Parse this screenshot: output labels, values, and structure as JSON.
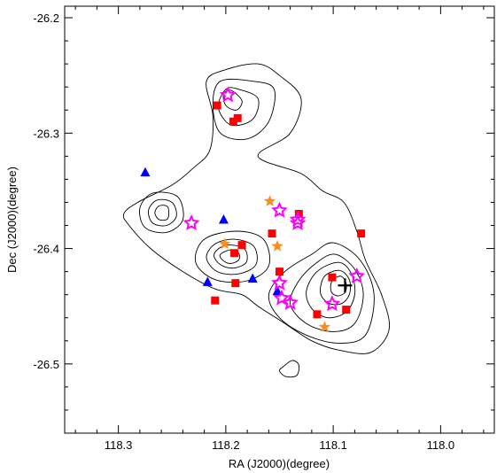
{
  "chart_data": {
    "type": "scatter",
    "xlabel": "RA (J2000)(degree)",
    "ylabel": "Dec (J2000)(degree)",
    "xlim": [
      118.35,
      117.95
    ],
    "ylim": [
      -26.56,
      -26.19
    ],
    "x_reversed": true,
    "xticks": [
      118.3,
      118.2,
      118.1,
      118.0
    ],
    "xtick_labels": [
      "118.3",
      "118.2",
      "118.1",
      "118.0"
    ],
    "yticks": [
      -26.2,
      -26.3,
      -26.4,
      -26.5
    ],
    "ytick_labels": [
      "-26.2",
      "-26.3",
      "-26.4",
      "-26.5"
    ],
    "grid": false,
    "series": [
      {
        "marker": "square",
        "color": "#ff0000",
        "points": [
          [
            118.208,
            -26.276
          ],
          [
            118.189,
            -26.287
          ],
          [
            118.193,
            -26.29
          ],
          [
            118.132,
            -26.37
          ],
          [
            118.157,
            -26.387
          ],
          [
            118.185,
            -26.397
          ],
          [
            118.192,
            -26.404
          ],
          [
            118.191,
            -26.43
          ],
          [
            118.15,
            -26.42
          ],
          [
            118.074,
            -26.387
          ],
          [
            118.101,
            -26.425
          ],
          [
            118.21,
            -26.445
          ],
          [
            118.115,
            -26.457
          ],
          [
            118.088,
            -26.453
          ]
        ]
      },
      {
        "marker": "triangle",
        "color": "#0000ff",
        "points": [
          [
            118.275,
            -26.334
          ],
          [
            118.202,
            -26.375
          ],
          [
            118.217,
            -26.429
          ],
          [
            118.175,
            -26.426
          ],
          [
            118.152,
            -26.437
          ]
        ]
      },
      {
        "marker": "star",
        "color": "#ff8c1a",
        "points": [
          [
            118.159,
            -26.359
          ],
          [
            118.201,
            -26.396
          ],
          [
            118.152,
            -26.398
          ],
          [
            118.108,
            -26.468
          ]
        ]
      },
      {
        "marker": "open-star",
        "color": "#ff00ff",
        "points": [
          [
            118.198,
            -26.267
          ],
          [
            118.15,
            -26.367
          ],
          [
            118.133,
            -26.375
          ],
          [
            118.133,
            -26.378
          ],
          [
            118.232,
            -26.378
          ],
          [
            118.15,
            -26.43
          ],
          [
            118.148,
            -26.443
          ],
          [
            118.14,
            -26.447
          ],
          [
            118.101,
            -26.448
          ],
          [
            118.078,
            -26.424
          ]
        ]
      },
      {
        "marker": "plus",
        "color": "#000000",
        "points": [
          [
            118.089,
            -26.432
          ]
        ]
      }
    ],
    "contours": [
      {
        "name": "outer",
        "points": [
          [
            118.15,
            -26.25
          ],
          [
            118.13,
            -26.27
          ],
          [
            118.14,
            -26.3
          ],
          [
            118.17,
            -26.32
          ],
          [
            118.13,
            -26.335
          ],
          [
            118.11,
            -26.35
          ],
          [
            118.09,
            -26.36
          ],
          [
            118.078,
            -26.385
          ],
          [
            118.07,
            -26.41
          ],
          [
            118.055,
            -26.44
          ],
          [
            118.048,
            -26.47
          ],
          [
            118.065,
            -26.49
          ],
          [
            118.095,
            -26.488
          ],
          [
            118.12,
            -26.48
          ],
          [
            118.145,
            -26.465
          ],
          [
            118.17,
            -26.45
          ],
          [
            118.185,
            -26.44
          ],
          [
            118.21,
            -26.435
          ],
          [
            118.24,
            -26.42
          ],
          [
            118.27,
            -26.4
          ],
          [
            118.29,
            -26.38
          ],
          [
            118.295,
            -26.37
          ],
          [
            118.282,
            -26.36
          ],
          [
            118.25,
            -26.345
          ],
          [
            118.23,
            -26.33
          ],
          [
            118.215,
            -26.315
          ],
          [
            118.212,
            -26.285
          ],
          [
            118.218,
            -26.255
          ],
          [
            118.2,
            -26.245
          ],
          [
            118.17,
            -26.24
          ]
        ]
      },
      {
        "name": "north-2",
        "points": [
          [
            118.175,
            -26.255
          ],
          [
            118.155,
            -26.262
          ],
          [
            118.16,
            -26.29
          ],
          [
            118.18,
            -26.305
          ],
          [
            118.205,
            -26.3
          ],
          [
            118.212,
            -26.275
          ],
          [
            118.205,
            -26.255
          ]
        ]
      },
      {
        "name": "north-3",
        "points": [
          [
            118.188,
            -26.262
          ],
          [
            118.17,
            -26.27
          ],
          [
            118.175,
            -26.288
          ],
          [
            118.195,
            -26.293
          ],
          [
            118.207,
            -26.278
          ],
          [
            118.2,
            -26.262
          ]
        ]
      },
      {
        "name": "north-4",
        "points": [
          [
            118.195,
            -26.263
          ],
          [
            118.185,
            -26.272
          ],
          [
            118.19,
            -26.28
          ],
          [
            118.2,
            -26.276
          ],
          [
            118.202,
            -26.266
          ]
        ]
      },
      {
        "name": "west-2",
        "points": [
          [
            118.245,
            -26.355
          ],
          [
            118.268,
            -26.352
          ],
          [
            118.28,
            -26.365
          ],
          [
            118.275,
            -26.382
          ],
          [
            118.255,
            -26.386
          ],
          [
            118.24,
            -26.375
          ]
        ]
      },
      {
        "name": "west-3",
        "points": [
          [
            118.25,
            -26.36
          ],
          [
            118.264,
            -26.358
          ],
          [
            118.272,
            -26.367
          ],
          [
            118.268,
            -26.378
          ],
          [
            118.255,
            -26.38
          ],
          [
            118.246,
            -26.372
          ]
        ]
      },
      {
        "name": "west-4",
        "points": [
          [
            118.254,
            -26.364
          ],
          [
            118.262,
            -26.363
          ],
          [
            118.266,
            -26.369
          ],
          [
            118.262,
            -26.375
          ],
          [
            118.254,
            -26.374
          ]
        ]
      },
      {
        "name": "center-2",
        "points": [
          [
            118.19,
            -26.385
          ],
          [
            118.165,
            -26.392
          ],
          [
            118.16,
            -26.415
          ],
          [
            118.18,
            -26.428
          ],
          [
            118.21,
            -26.427
          ],
          [
            118.228,
            -26.412
          ],
          [
            118.22,
            -26.392
          ]
        ]
      },
      {
        "name": "center-3",
        "points": [
          [
            118.192,
            -26.392
          ],
          [
            118.174,
            -26.398
          ],
          [
            118.172,
            -26.414
          ],
          [
            118.188,
            -26.422
          ],
          [
            118.208,
            -26.42
          ],
          [
            118.218,
            -26.408
          ],
          [
            118.21,
            -26.396
          ]
        ]
      },
      {
        "name": "center-4",
        "points": [
          [
            118.194,
            -26.397
          ],
          [
            118.182,
            -26.401
          ],
          [
            118.181,
            -26.412
          ],
          [
            118.193,
            -26.417
          ],
          [
            118.205,
            -26.414
          ],
          [
            118.211,
            -26.406
          ],
          [
            118.205,
            -26.399
          ]
        ]
      },
      {
        "name": "center-5",
        "points": [
          [
            118.195,
            -26.401
          ],
          [
            118.188,
            -26.404
          ],
          [
            118.188,
            -26.41
          ],
          [
            118.196,
            -26.413
          ],
          [
            118.203,
            -26.41
          ],
          [
            118.205,
            -26.405
          ]
        ]
      },
      {
        "name": "se-2",
        "points": [
          [
            118.1,
            -26.395
          ],
          [
            118.075,
            -26.41
          ],
          [
            118.062,
            -26.44
          ],
          [
            118.07,
            -26.475
          ],
          [
            118.095,
            -26.482
          ],
          [
            118.125,
            -26.475
          ],
          [
            118.15,
            -26.46
          ],
          [
            118.16,
            -26.44
          ],
          [
            118.145,
            -26.42
          ],
          [
            118.12,
            -26.405
          ]
        ]
      },
      {
        "name": "se-3",
        "points": [
          [
            118.098,
            -26.405
          ],
          [
            118.08,
            -26.418
          ],
          [
            118.072,
            -26.44
          ],
          [
            118.08,
            -26.465
          ],
          [
            118.1,
            -26.472
          ],
          [
            118.125,
            -26.465
          ],
          [
            118.14,
            -26.448
          ],
          [
            118.132,
            -26.428
          ],
          [
            118.115,
            -26.412
          ]
        ]
      },
      {
        "name": "se-4",
        "points": [
          [
            118.095,
            -26.412
          ],
          [
            118.083,
            -26.422
          ],
          [
            118.08,
            -26.44
          ],
          [
            118.088,
            -26.455
          ],
          [
            118.105,
            -26.46
          ],
          [
            118.12,
            -26.452
          ],
          [
            118.125,
            -26.437
          ],
          [
            118.115,
            -26.42
          ]
        ]
      },
      {
        "name": "se-5",
        "points": [
          [
            118.094,
            -26.419
          ],
          [
            118.085,
            -26.427
          ],
          [
            118.085,
            -26.44
          ],
          [
            118.093,
            -26.448
          ],
          [
            118.105,
            -26.447
          ],
          [
            118.112,
            -26.438
          ],
          [
            118.108,
            -26.424
          ]
        ]
      },
      {
        "name": "se-6",
        "points": [
          [
            118.093,
            -26.424
          ],
          [
            118.088,
            -26.43
          ],
          [
            118.089,
            -26.438
          ],
          [
            118.096,
            -26.441
          ],
          [
            118.102,
            -26.437
          ],
          [
            118.101,
            -26.428
          ]
        ]
      },
      {
        "name": "south-blob",
        "points": [
          [
            118.146,
            -26.502
          ],
          [
            118.138,
            -26.497
          ],
          [
            118.132,
            -26.501
          ],
          [
            118.134,
            -26.51
          ],
          [
            118.144,
            -26.511
          ],
          [
            118.15,
            -26.506
          ]
        ]
      }
    ]
  }
}
